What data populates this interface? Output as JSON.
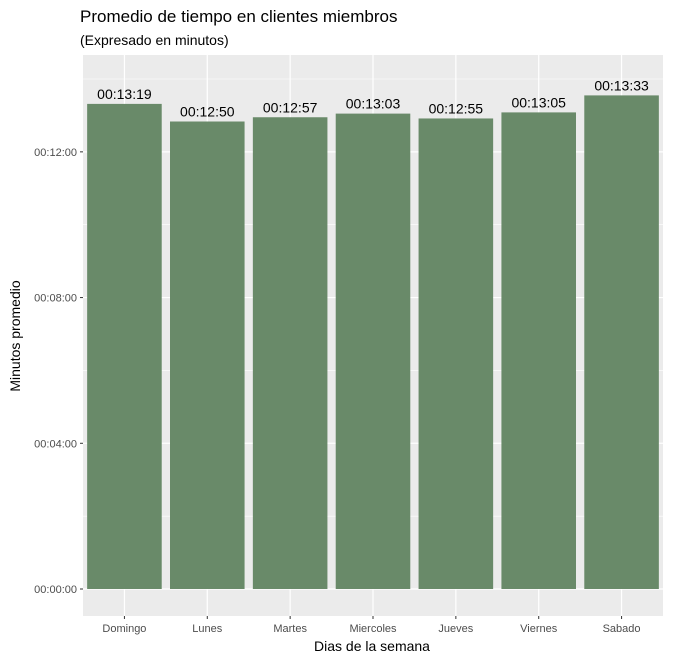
{
  "chart_data": {
    "type": "bar",
    "title": "Promedio de tiempo en clientes miembros",
    "subtitle": "(Expresado en minutos)",
    "xlabel": "Dias de la semana",
    "ylabel": "Minutos promedio",
    "categories": [
      "Domingo",
      "Lunes",
      "Martes",
      "Miercoles",
      "Jueves",
      "Viernes",
      "Sabado"
    ],
    "values": [
      799,
      770,
      777,
      783,
      775,
      785,
      813
    ],
    "value_labels": [
      "00:13:19",
      "00:12:50",
      "00:12:57",
      "00:13:03",
      "00:12:55",
      "00:13:05",
      "00:13:33"
    ],
    "y_unit": "seconds",
    "ylim": [
      0,
      840
    ],
    "y_ticks": [
      0,
      240,
      480,
      720
    ],
    "y_tick_labels": [
      "00:00:00",
      "00:04:00",
      "00:08:00",
      "00:12:00"
    ],
    "grid": true,
    "legend": "none",
    "colors": {
      "bar": "#698a69",
      "panel": "#ebebeb",
      "grid": "#ffffff"
    }
  }
}
